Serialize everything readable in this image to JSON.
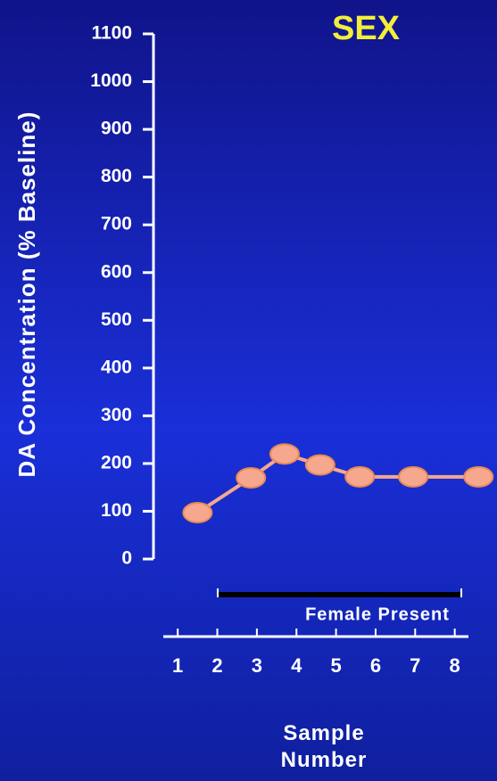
{
  "chart_data": {
    "type": "line",
    "title": "SEX",
    "y_label": "DA Concentration (% Baseline)",
    "x_label": "Sample Number",
    "annotation": "Female Present",
    "x": [
      1.5,
      2.85,
      3.7,
      4.6,
      5.6,
      6.95,
      8.6
    ],
    "series": [
      {
        "name": "DA",
        "color": "#f6a88e",
        "values": [
          97,
          170,
          220,
          197,
          172,
          172,
          172
        ]
      }
    ],
    "xlim": [
      0.5,
      9
    ],
    "xticks": [
      1,
      2,
      3,
      4,
      5,
      6,
      7,
      8
    ],
    "ylim": [
      0,
      1100
    ],
    "yticks": [
      0,
      100,
      200,
      300,
      400,
      500,
      600,
      700,
      800,
      900,
      1000,
      1100
    ]
  }
}
